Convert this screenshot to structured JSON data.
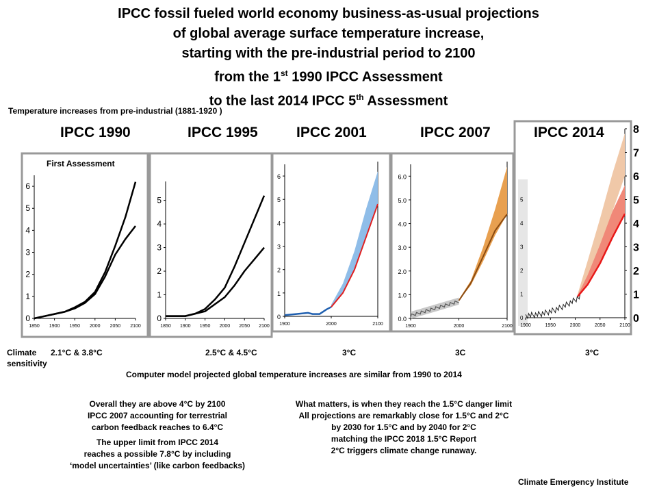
{
  "title": {
    "line1": "IPCC fossil fueled world economy business-as-usual projections",
    "line2": "of global average surface temperature increase,",
    "line3": "starting with the  pre-industrial period to 2100",
    "line4_pre": "from the 1",
    "line4_sup": "st",
    "line4_post": " 1990 IPCC Assessment",
    "line5_pre": "to the last 2014 IPCC 5",
    "line5_sup": "th",
    "line5_post": " Assessment"
  },
  "subtitle": "Temperature increases from pre-industrial (1881-1920 )",
  "panels": [
    {
      "id": "1990",
      "title": "IPCC 1990",
      "inner_label": "First Assessment",
      "sensitivity": "2.1°C & 3.8°C"
    },
    {
      "id": "1995",
      "title": "IPCC 1995",
      "sensitivity": "2.5°C & 4.5°C"
    },
    {
      "id": "2001",
      "title": "IPCC 2001",
      "sensitivity": "3°C"
    },
    {
      "id": "2007",
      "title": "IPCC 2007",
      "sensitivity": "3C"
    },
    {
      "id": "2014",
      "title": "IPCC 2014",
      "sensitivity": "3°C"
    }
  ],
  "climate_label_1": "Climate",
  "climate_label_2": "sensitivity",
  "comparison": "Computer model projected global temperature increases are similar from 1990  to 2014",
  "note_left": {
    "l1": "Overall they are above 4°C by 2100",
    "l2": "IPCC 2007  accounting for terrestrial",
    "l3": "carbon feedback reaches to 6.4°C",
    "l4": "The upper limit from IPCC 2014",
    "l5": "reaches a possible 7.8°C by including",
    "l6": "‘model uncertainties’ (like carbon feedbacks)"
  },
  "note_right": {
    "l1": "What matters, is when they reach the 1.5°C danger limit",
    "l2": "All projections are remarkably close for 1.5°C and 2°C",
    "l3": "by 2030  for 1.5°C and by 2040  for 2°C",
    "l4": "matching the IPCC 2018  1.5°C Report",
    "l5": "2°C triggers climate change runaway."
  },
  "credit": "Climate Emergency Institute",
  "colors": {
    "band_2001": "#8fbde8",
    "line_2001": "#e02020",
    "obs_2001": "#2060b0",
    "band_2007": "#e8a050",
    "line_2007": "#8a4a10",
    "obs_2007": "#909090",
    "band_2014_light": "#f0c8a8",
    "band_2014_mid": "#f08878",
    "line_2014": "#e81818",
    "obs_2014": "#202020"
  },
  "chart_data": [
    {
      "type": "line",
      "panel": "IPCC 1990",
      "x": [
        1850,
        1875,
        1900,
        1925,
        1950,
        1975,
        2000,
        2025,
        2050,
        2075,
        2100
      ],
      "xticks": [
        "1850",
        "1900",
        "1950",
        "2000",
        "2050",
        "2100"
      ],
      "yticks": [
        "0",
        "1",
        "2",
        "3",
        "4",
        "5",
        "6"
      ],
      "ylim": [
        0,
        6.5
      ],
      "series": [
        {
          "values": [
            0,
            0.1,
            0.2,
            0.3,
            0.5,
            0.75,
            1.2,
            2.1,
            3.3,
            4.6,
            6.2
          ]
        },
        {
          "values": [
            0,
            0.1,
            0.2,
            0.3,
            0.45,
            0.7,
            1.1,
            1.9,
            2.9,
            3.6,
            4.2
          ]
        }
      ]
    },
    {
      "type": "line",
      "panel": "IPCC 1995",
      "x": [
        1850,
        1875,
        1900,
        1925,
        1950,
        1975,
        2000,
        2025,
        2050,
        2075,
        2100
      ],
      "xticks": [
        "1850",
        "1900",
        "1950",
        "2000",
        "2050",
        "2100"
      ],
      "yticks": [
        "0",
        "1",
        "2",
        "3",
        "4",
        "5"
      ],
      "ylim": [
        0,
        5.8
      ],
      "series": [
        {
          "values": [
            0.1,
            0.1,
            0.1,
            0.2,
            0.4,
            0.8,
            1.3,
            2.2,
            3.2,
            4.2,
            5.2
          ]
        },
        {
          "values": [
            0.1,
            0.1,
            0.1,
            0.2,
            0.3,
            0.6,
            0.9,
            1.4,
            2.0,
            2.5,
            3.0
          ]
        }
      ]
    },
    {
      "type": "area",
      "panel": "IPCC 2001",
      "x": [
        1900,
        1925,
        1950,
        1975,
        2000,
        2025,
        2050,
        2075,
        2100
      ],
      "xticks": [
        "1900",
        "2000",
        "2100"
      ],
      "yticks": [
        "0",
        "1",
        "2",
        "3",
        "4",
        "5",
        "6"
      ],
      "ylim": [
        0,
        6.5
      ],
      "observed": {
        "x": [
          1900,
          1925,
          1950,
          1960,
          1975,
          1990,
          2000
        ],
        "values": [
          0.05,
          0.1,
          0.15,
          0.1,
          0.1,
          0.3,
          0.4
        ]
      },
      "band": {
        "x": [
          2000,
          2025,
          2050,
          2075,
          2100
        ],
        "low": [
          0.4,
          1.0,
          2.0,
          3.4,
          4.8
        ],
        "high": [
          0.5,
          1.4,
          2.8,
          4.6,
          6.2
        ]
      },
      "central": {
        "x": [
          2000,
          2025,
          2050,
          2075,
          2100
        ],
        "values": [
          0.4,
          1.0,
          2.0,
          3.4,
          4.8
        ]
      }
    },
    {
      "type": "area",
      "panel": "IPCC 2007",
      "x": [
        1900,
        2000,
        2100
      ],
      "xticks": [
        "1900",
        "2000",
        "2100"
      ],
      "yticks": [
        "0.0",
        "1.0",
        "2.0",
        "3.0",
        "4.0",
        "5.0",
        "6.0"
      ],
      "ylim": [
        0,
        6.5
      ],
      "observed": {
        "x": [
          1900,
          1920,
          1940,
          1960,
          1980,
          2000
        ],
        "values": [
          0.1,
          0.2,
          0.3,
          0.3,
          0.45,
          0.75
        ]
      },
      "band": {
        "x": [
          2000,
          2025,
          2050,
          2075,
          2100
        ],
        "low": [
          0.75,
          1.4,
          2.4,
          3.5,
          4.4
        ],
        "high": [
          0.8,
          1.6,
          3.0,
          4.6,
          6.4
        ]
      },
      "central": {
        "x": [
          2000,
          2025,
          2050,
          2075,
          2100
        ],
        "values": [
          0.75,
          1.5,
          2.6,
          3.7,
          4.4
        ]
      }
    },
    {
      "type": "area",
      "panel": "IPCC 2014",
      "x": [
        1900,
        1950,
        2000,
        2050,
        2100
      ],
      "xticks": [
        "1900",
        "1950",
        "2000",
        "2050",
        "2100"
      ],
      "yticks": [
        "0",
        "1",
        "2",
        "3",
        "4",
        "5",
        "6",
        "7",
        "8"
      ],
      "ylim": [
        0,
        8
      ],
      "observed": {
        "x": [
          1900,
          1925,
          1950,
          1975,
          2000,
          2010
        ],
        "values": [
          0.1,
          0.15,
          0.3,
          0.4,
          0.8,
          0.9
        ]
      },
      "band_outer": {
        "x": [
          2005,
          2025,
          2050,
          2075,
          2100
        ],
        "low": [
          0.9,
          1.6,
          2.8,
          4.5,
          6.0
        ],
        "high": [
          1.0,
          2.4,
          4.2,
          6.1,
          7.8
        ]
      },
      "band_inner": {
        "x": [
          2005,
          2025,
          2050,
          2075,
          2100
        ],
        "low": [
          0.9,
          1.4,
          2.3,
          3.4,
          4.4
        ],
        "high": [
          0.95,
          1.8,
          3.1,
          4.5,
          5.6
        ]
      },
      "central": {
        "x": [
          2005,
          2025,
          2050,
          2075,
          2100
        ],
        "values": [
          0.9,
          1.4,
          2.3,
          3.4,
          4.4
        ]
      }
    }
  ]
}
